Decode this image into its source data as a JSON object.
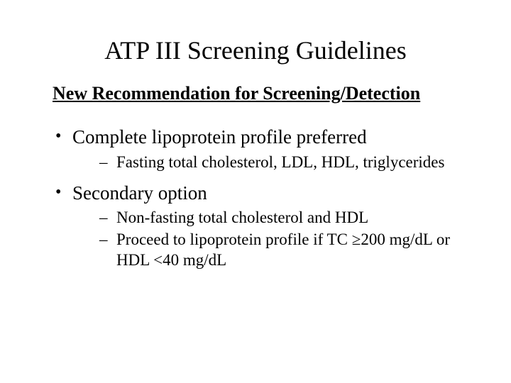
{
  "slide": {
    "title": "ATP III Screening Guidelines",
    "subheading": "New Recommendation for Screening/Detection",
    "bullets": [
      {
        "text": "Complete lipoprotein profile preferred",
        "subs": [
          "Fasting total cholesterol, LDL, HDL, triglycerides"
        ]
      },
      {
        "text": "Secondary option",
        "subs": [
          "Non-fasting total cholesterol and HDL",
          "Proceed to lipoprotein profile if TC ≥200 mg/dL or HDL <40 mg/dL"
        ]
      }
    ],
    "styling": {
      "background_color": "#ffffff",
      "text_color": "#000000",
      "font_family": "Times New Roman",
      "title_fontsize": 36,
      "subheading_fontsize": 26,
      "bullet_fontsize": 27,
      "subbullet_fontsize": 23
    }
  }
}
